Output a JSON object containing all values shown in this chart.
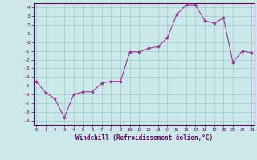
{
  "xlabel": "Windchill (Refroidissement éolien,°C)",
  "x": [
    0,
    1,
    2,
    3,
    4,
    5,
    6,
    7,
    8,
    9,
    10,
    11,
    12,
    13,
    14,
    15,
    16,
    17,
    18,
    19,
    20,
    21,
    22,
    23
  ],
  "y": [
    -4.5,
    -5.8,
    -6.5,
    -8.7,
    -6.0,
    -5.7,
    -5.7,
    -4.7,
    -4.5,
    -4.5,
    -1.1,
    -1.1,
    -0.7,
    -0.5,
    0.5,
    3.2,
    4.3,
    4.3,
    2.5,
    2.2,
    2.8,
    -2.3,
    -1.0,
    -1.2
  ],
  "ylim": [
    -9.5,
    4.5
  ],
  "xlim": [
    -0.3,
    23.3
  ],
  "yticks": [
    4,
    3,
    2,
    1,
    0,
    -1,
    -2,
    -3,
    -4,
    -5,
    -6,
    -7,
    -8,
    -9
  ],
  "xticks": [
    0,
    1,
    2,
    3,
    4,
    5,
    6,
    7,
    8,
    9,
    10,
    11,
    12,
    13,
    14,
    15,
    16,
    17,
    18,
    19,
    20,
    21,
    22,
    23
  ],
  "line_color": "#993399",
  "marker_color": "#993399",
  "bg_color": "#cce8e8",
  "grid_color": "#99cccc",
  "border_color": "#660066",
  "tick_color": "#660066",
  "label_color": "#660066"
}
